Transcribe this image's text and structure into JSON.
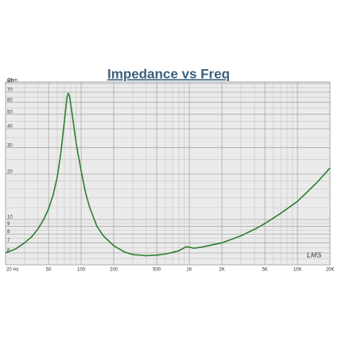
{
  "chart_data": {
    "type": "line",
    "title": "Impedance vs Freq",
    "y_label": "Ohm",
    "signature": "LMS",
    "log_x": true,
    "log_y": true,
    "grid": true,
    "xlim": [
      20,
      20000
    ],
    "ylim": [
      5,
      82
    ],
    "xticks": [
      {
        "value": 20,
        "label": "20 Hz"
      },
      50,
      100,
      200,
      500,
      {
        "value": 1000,
        "label": "1K"
      },
      {
        "value": 2000,
        "label": "2K"
      },
      {
        "value": 5000,
        "label": "5K"
      },
      {
        "value": 10000,
        "label": "10K"
      },
      {
        "value": 20000,
        "label": "20K"
      }
    ],
    "yticks": [
      6,
      7,
      8,
      9,
      10,
      20,
      30,
      40,
      50,
      60,
      70,
      80
    ],
    "minor_xgrid": [
      30,
      40,
      60,
      70,
      80,
      90,
      300,
      400,
      600,
      700,
      800,
      900,
      3000,
      4000,
      6000,
      7000,
      8000,
      9000
    ],
    "minor_ygrid": [
      5.5,
      6.5,
      7.5,
      8.5,
      9.5,
      12,
      14,
      16,
      18,
      25,
      35,
      45,
      55,
      65,
      75
    ],
    "x": [
      20,
      25,
      30,
      35,
      40,
      45,
      50,
      55,
      60,
      65,
      70,
      74,
      76,
      78,
      82,
      90,
      100,
      110,
      120,
      140,
      160,
      200,
      250,
      300,
      400,
      500,
      600,
      700,
      800,
      900,
      950,
      1000,
      1100,
      1300,
      1500,
      2000,
      3000,
      4000,
      5000,
      7000,
      10000,
      15000,
      20000
    ],
    "series": [
      {
        "name": "Impedance",
        "color": "#2e7d32",
        "values": [
          6.0,
          6.4,
          7.0,
          7.7,
          8.7,
          10,
          11.8,
          14.5,
          19,
          28,
          45,
          65,
          69,
          66,
          52,
          32,
          21,
          15,
          12,
          9,
          7.8,
          6.7,
          6.1,
          5.85,
          5.75,
          5.8,
          5.9,
          6.05,
          6.2,
          6.5,
          6.6,
          6.55,
          6.45,
          6.55,
          6.7,
          7.0,
          7.8,
          8.6,
          9.4,
          11,
          13.2,
          17.5,
          22
        ]
      }
    ]
  }
}
